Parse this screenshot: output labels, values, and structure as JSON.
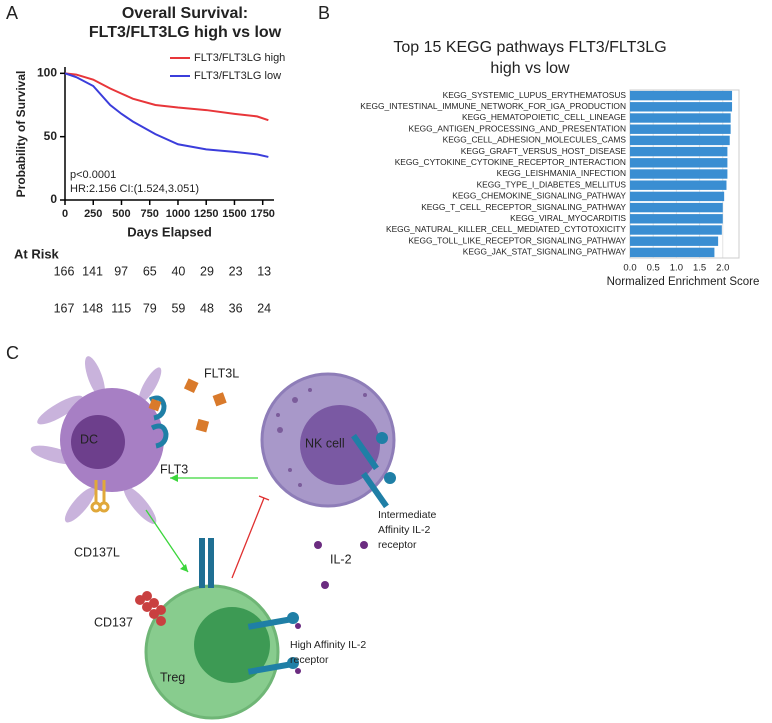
{
  "panels": {
    "a": "A",
    "b": "B",
    "c": "C"
  },
  "chart_data": [
    {
      "type": "line",
      "title": [
        "Overall Survival:",
        "FLT3/FLT3LG high vs low"
      ],
      "xlabel": "Days Elapsed",
      "ylabel": "Probability of Survival",
      "x": [
        0,
        100,
        250,
        400,
        500,
        600,
        800,
        1000,
        1250,
        1500,
        1700,
        1800
      ],
      "series": [
        {
          "name": "FLT3/FLT3LG high",
          "color": "#e8363a",
          "values": [
            100,
            99,
            95,
            88,
            84,
            80,
            75,
            73,
            71,
            68,
            66,
            63
          ]
        },
        {
          "name": "FLT3/FLT3LG low",
          "color": "#3b3ddb",
          "values": [
            100,
            97,
            90,
            75,
            68,
            62,
            52,
            44,
            40,
            38,
            36,
            34
          ]
        }
      ],
      "xlim": [
        0,
        1850
      ],
      "xticks": [
        0,
        250,
        500,
        750,
        1000,
        1250,
        1500,
        1750
      ],
      "ylim": [
        0,
        105
      ],
      "yticks": [
        0,
        50,
        100
      ],
      "legend": "top-right",
      "annotations": [
        "p<0.0001",
        "HR:2.156 CI:(1.524,3.051)"
      ],
      "at_risk": {
        "title": "At Risk",
        "rows": [
          [
            166,
            141,
            97,
            65,
            40,
            29,
            23,
            13
          ],
          [
            167,
            148,
            115,
            79,
            59,
            48,
            36,
            24
          ]
        ]
      }
    },
    {
      "type": "hbar",
      "title": [
        "Top 15 KEGG pathways FLT3/FLT3LG",
        "high vs low"
      ],
      "xlabel": "Normalized Enrichment Score",
      "color": "#3a8ed2",
      "categories": [
        "KEGG_SYSTEMIC_LUPUS_ERYTHEMATOSUS",
        "KEGG_INTESTINAL_IMMUNE_NETWORK_FOR_IGA_PRODUCTION",
        "KEGG_HEMATOPOIETIC_CELL_LINEAGE",
        "KEGG_ANTIGEN_PROCESSING_AND_PRESENTATION",
        "KEGG_CELL_ADHESION_MOLECULES_CAMS",
        "KEGG_GRAFT_VERSUS_HOST_DISEASE",
        "KEGG_CYTOKINE_CYTOKINE_RECEPTOR_INTERACTION",
        "KEGG_LEISHMANIA_INFECTION",
        "KEGG_TYPE_I_DIABETES_MELLITUS",
        "KEGG_CHEMOKINE_SIGNALING_PATHWAY",
        "KEGG_T_CELL_RECEPTOR_SIGNALING_PATHWAY",
        "KEGG_VIRAL_MYOCARDITIS",
        "KEGG_NATURAL_KILLER_CELL_MEDIATED_CYTOTOXICITY",
        "KEGG_TOLL_LIKE_RECEPTOR_SIGNALING_PATHWAY",
        "KEGG_JAK_STAT_SIGNALING_PATHWAY"
      ],
      "values": [
        2.2,
        2.2,
        2.17,
        2.17,
        2.15,
        2.1,
        2.1,
        2.1,
        2.08,
        2.03,
        2.0,
        2.0,
        1.98,
        1.9,
        1.82
      ],
      "xlim": [
        0,
        2.35
      ],
      "xticks": [
        {
          "value": 0,
          "label": "0.0"
        },
        0.5,
        {
          "value": 1,
          "label": "1.0"
        },
        1.5,
        {
          "value": 2,
          "label": "2.0"
        }
      ]
    }
  ],
  "diagram": {
    "labels": {
      "flt3l": "FLT3L",
      "dc": "DC",
      "flt3": "FLT3",
      "cd137l": "CD137L",
      "nk": "NK cell",
      "int_receptor": [
        "Intermediate",
        "Affinity IL-2",
        "receptor"
      ],
      "il2": "IL-2",
      "cd137": "CD137",
      "treg": "Treg",
      "high_receptor": [
        "High Affinity IL-2",
        "receptor"
      ]
    }
  }
}
